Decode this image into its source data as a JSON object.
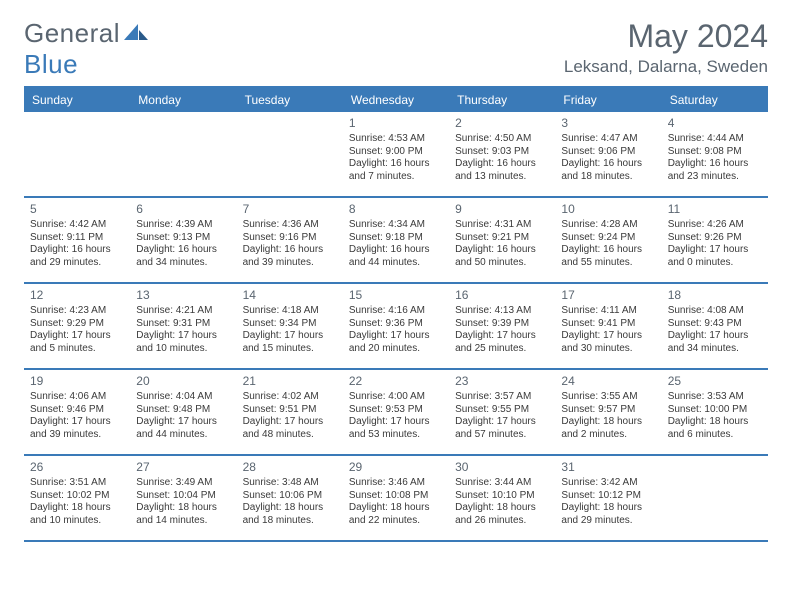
{
  "brand": {
    "part1": "General",
    "part2": "Blue"
  },
  "title": "May 2024",
  "location": "Leksand, Dalarna, Sweden",
  "colors": {
    "accent": "#3a7ab8",
    "headerText": "#5a6570",
    "bodyText": "#404040",
    "background": "#ffffff"
  },
  "dayNames": [
    "Sunday",
    "Monday",
    "Tuesday",
    "Wednesday",
    "Thursday",
    "Friday",
    "Saturday"
  ],
  "weeks": [
    [
      null,
      null,
      null,
      {
        "n": "1",
        "sr": "4:53 AM",
        "ss": "9:00 PM",
        "dl": "16 hours and 7 minutes."
      },
      {
        "n": "2",
        "sr": "4:50 AM",
        "ss": "9:03 PM",
        "dl": "16 hours and 13 minutes."
      },
      {
        "n": "3",
        "sr": "4:47 AM",
        "ss": "9:06 PM",
        "dl": "16 hours and 18 minutes."
      },
      {
        "n": "4",
        "sr": "4:44 AM",
        "ss": "9:08 PM",
        "dl": "16 hours and 23 minutes."
      }
    ],
    [
      {
        "n": "5",
        "sr": "4:42 AM",
        "ss": "9:11 PM",
        "dl": "16 hours and 29 minutes."
      },
      {
        "n": "6",
        "sr": "4:39 AM",
        "ss": "9:13 PM",
        "dl": "16 hours and 34 minutes."
      },
      {
        "n": "7",
        "sr": "4:36 AM",
        "ss": "9:16 PM",
        "dl": "16 hours and 39 minutes."
      },
      {
        "n": "8",
        "sr": "4:34 AM",
        "ss": "9:18 PM",
        "dl": "16 hours and 44 minutes."
      },
      {
        "n": "9",
        "sr": "4:31 AM",
        "ss": "9:21 PM",
        "dl": "16 hours and 50 minutes."
      },
      {
        "n": "10",
        "sr": "4:28 AM",
        "ss": "9:24 PM",
        "dl": "16 hours and 55 minutes."
      },
      {
        "n": "11",
        "sr": "4:26 AM",
        "ss": "9:26 PM",
        "dl": "17 hours and 0 minutes."
      }
    ],
    [
      {
        "n": "12",
        "sr": "4:23 AM",
        "ss": "9:29 PM",
        "dl": "17 hours and 5 minutes."
      },
      {
        "n": "13",
        "sr": "4:21 AM",
        "ss": "9:31 PM",
        "dl": "17 hours and 10 minutes."
      },
      {
        "n": "14",
        "sr": "4:18 AM",
        "ss": "9:34 PM",
        "dl": "17 hours and 15 minutes."
      },
      {
        "n": "15",
        "sr": "4:16 AM",
        "ss": "9:36 PM",
        "dl": "17 hours and 20 minutes."
      },
      {
        "n": "16",
        "sr": "4:13 AM",
        "ss": "9:39 PM",
        "dl": "17 hours and 25 minutes."
      },
      {
        "n": "17",
        "sr": "4:11 AM",
        "ss": "9:41 PM",
        "dl": "17 hours and 30 minutes."
      },
      {
        "n": "18",
        "sr": "4:08 AM",
        "ss": "9:43 PM",
        "dl": "17 hours and 34 minutes."
      }
    ],
    [
      {
        "n": "19",
        "sr": "4:06 AM",
        "ss": "9:46 PM",
        "dl": "17 hours and 39 minutes."
      },
      {
        "n": "20",
        "sr": "4:04 AM",
        "ss": "9:48 PM",
        "dl": "17 hours and 44 minutes."
      },
      {
        "n": "21",
        "sr": "4:02 AM",
        "ss": "9:51 PM",
        "dl": "17 hours and 48 minutes."
      },
      {
        "n": "22",
        "sr": "4:00 AM",
        "ss": "9:53 PM",
        "dl": "17 hours and 53 minutes."
      },
      {
        "n": "23",
        "sr": "3:57 AM",
        "ss": "9:55 PM",
        "dl": "17 hours and 57 minutes."
      },
      {
        "n": "24",
        "sr": "3:55 AM",
        "ss": "9:57 PM",
        "dl": "18 hours and 2 minutes."
      },
      {
        "n": "25",
        "sr": "3:53 AM",
        "ss": "10:00 PM",
        "dl": "18 hours and 6 minutes."
      }
    ],
    [
      {
        "n": "26",
        "sr": "3:51 AM",
        "ss": "10:02 PM",
        "dl": "18 hours and 10 minutes."
      },
      {
        "n": "27",
        "sr": "3:49 AM",
        "ss": "10:04 PM",
        "dl": "18 hours and 14 minutes."
      },
      {
        "n": "28",
        "sr": "3:48 AM",
        "ss": "10:06 PM",
        "dl": "18 hours and 18 minutes."
      },
      {
        "n": "29",
        "sr": "3:46 AM",
        "ss": "10:08 PM",
        "dl": "18 hours and 22 minutes."
      },
      {
        "n": "30",
        "sr": "3:44 AM",
        "ss": "10:10 PM",
        "dl": "18 hours and 26 minutes."
      },
      {
        "n": "31",
        "sr": "3:42 AM",
        "ss": "10:12 PM",
        "dl": "18 hours and 29 minutes."
      },
      null
    ]
  ],
  "labels": {
    "sunrise": "Sunrise: ",
    "sunset": "Sunset: ",
    "daylight": "Daylight: "
  }
}
